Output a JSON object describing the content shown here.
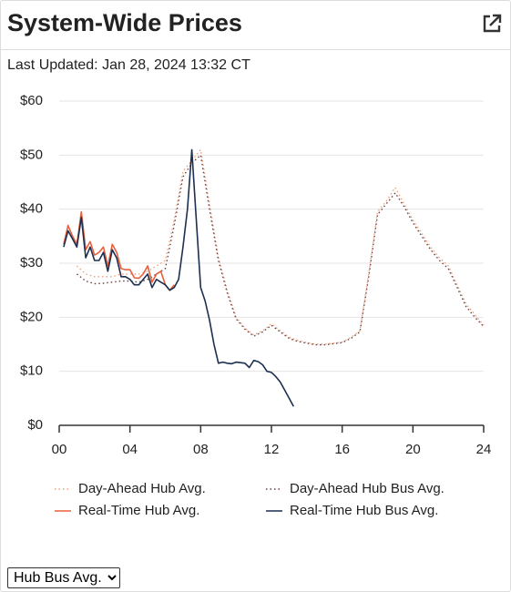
{
  "header": {
    "title": "System-Wide Prices",
    "updated": "Last Updated: Jan 28, 2024 13:32 CT"
  },
  "chart_data": {
    "type": "line",
    "xlim": [
      0,
      24
    ],
    "xticks": [
      {
        "value": 0,
        "label": "00"
      },
      {
        "value": 4,
        "label": "04"
      },
      {
        "value": 8,
        "label": "08"
      },
      12,
      16,
      20,
      24
    ],
    "ylim": [
      0,
      60
    ],
    "yticks": [
      {
        "value": 0,
        "label": "$0"
      },
      {
        "value": 10,
        "label": "$10"
      },
      {
        "value": 20,
        "label": "$20"
      },
      {
        "value": 30,
        "label": "$30"
      },
      {
        "value": 40,
        "label": "$40"
      },
      {
        "value": 50,
        "label": "$50"
      },
      {
        "value": 60,
        "label": "$60"
      }
    ],
    "grid": true,
    "series": [
      {
        "name": "Day-Ahead Hub Avg.",
        "color": "#f0a07a",
        "style": "dotted",
        "x": [
          1,
          1.5,
          2,
          2.5,
          3,
          3.5,
          4,
          4.5,
          5,
          5.5,
          6,
          6.5,
          7,
          7.5,
          8,
          8.5,
          9,
          9.5,
          10,
          10.5,
          11,
          11.5,
          12,
          12.5,
          13,
          13.5,
          14,
          14.5,
          15,
          15.5,
          16,
          16.5,
          17,
          17.5,
          18,
          18.5,
          19,
          19.5,
          20,
          20.5,
          21,
          21.5,
          22,
          22.5,
          23,
          23.5,
          24
        ],
        "values": [
          29.5,
          28,
          27.5,
          27.5,
          27.5,
          28,
          28,
          28,
          28.5,
          29.5,
          30.5,
          38,
          47,
          49,
          51,
          41,
          31,
          25,
          20,
          18,
          16.7,
          17.5,
          18.8,
          17.5,
          16.3,
          15.7,
          15.3,
          15,
          15,
          15.2,
          15.4,
          16.3,
          17.5,
          28,
          39.5,
          41.5,
          44,
          41,
          38,
          35.5,
          33,
          31,
          29.5,
          26,
          22.5,
          20.5,
          18.5
        ]
      },
      {
        "name": "Day-Ahead Hub Bus Avg.",
        "color": "#6b3f3f",
        "style": "dotted",
        "x": [
          1,
          1.5,
          2,
          2.5,
          3,
          3.5,
          4,
          4.5,
          5,
          5.5,
          6,
          6.5,
          7,
          7.5,
          8,
          8.5,
          9,
          9.5,
          10,
          10.5,
          11,
          11.5,
          12,
          12.5,
          13,
          13.5,
          14,
          14.5,
          15,
          15.5,
          16,
          16.5,
          17,
          17.5,
          18,
          18.5,
          19,
          19.5,
          20,
          20.5,
          21,
          21.5,
          22,
          22.5,
          23,
          23.5,
          24
        ],
        "values": [
          28,
          26.7,
          26.2,
          26.3,
          26.5,
          26.7,
          26.7,
          26.5,
          27,
          28,
          29,
          37,
          46,
          48.5,
          50,
          40,
          30.5,
          24.5,
          19.7,
          17.8,
          16.5,
          17.3,
          18.5,
          17.3,
          16.1,
          15.5,
          15.2,
          14.9,
          14.9,
          15.1,
          15.3,
          16.1,
          17.3,
          27.5,
          39,
          41,
          43,
          40.5,
          37.5,
          35,
          32.5,
          30.5,
          29,
          25.5,
          22,
          20,
          18.3
        ]
      },
      {
        "name": "Real-Time Hub Avg.",
        "color": "#e8603c",
        "style": "solid",
        "x": [
          0.25,
          0.5,
          0.75,
          1,
          1.25,
          1.5,
          1.75,
          2,
          2.25,
          2.5,
          2.75,
          3,
          3.25,
          3.5,
          3.75,
          4,
          4.25,
          4.5,
          4.75,
          5,
          5.25,
          5.5,
          5.75,
          6,
          6.25,
          6.5
        ],
        "values": [
          33.5,
          37,
          35,
          33.5,
          39.5,
          32.5,
          34,
          31.5,
          32,
          33,
          29.5,
          33.5,
          32,
          29,
          28.8,
          28.8,
          27.3,
          27.2,
          28,
          29.5,
          26.5,
          28,
          28.5,
          26,
          25,
          26
        ]
      },
      {
        "name": "Real-Time Hub Bus Avg.",
        "color": "#1b2f50",
        "style": "solid",
        "x": [
          0.25,
          0.5,
          0.75,
          1,
          1.25,
          1.5,
          1.75,
          2,
          2.25,
          2.5,
          2.75,
          3,
          3.25,
          3.5,
          3.75,
          4,
          4.25,
          4.5,
          4.75,
          5,
          5.25,
          5.5,
          5.75,
          6,
          6.25,
          6.5,
          6.75,
          7,
          7.25,
          7.5,
          7.75,
          8,
          8.25,
          8.5,
          8.75,
          9,
          9.25,
          9.5,
          9.75,
          10,
          10.25,
          10.5,
          10.75,
          11,
          11.25,
          11.5,
          11.75,
          12,
          12.25,
          12.5,
          12.75,
          13,
          13.25
        ],
        "values": [
          33,
          36,
          34.5,
          33,
          38.5,
          31,
          33,
          30.5,
          30.5,
          32,
          28.5,
          32.5,
          31,
          27.5,
          27.5,
          27,
          26,
          26,
          27,
          28,
          25.5,
          27,
          26.5,
          26,
          25,
          25.5,
          27,
          33,
          40,
          51,
          38,
          25.5,
          23,
          19.5,
          15,
          11.5,
          11.7,
          11.5,
          11.4,
          11.7,
          11.6,
          11.5,
          10.7,
          12,
          11.8,
          11.2,
          10,
          9.8,
          9,
          8,
          6.5,
          5,
          3.5
        ]
      }
    ]
  },
  "control": {
    "selected": "Hub Bus Avg."
  }
}
